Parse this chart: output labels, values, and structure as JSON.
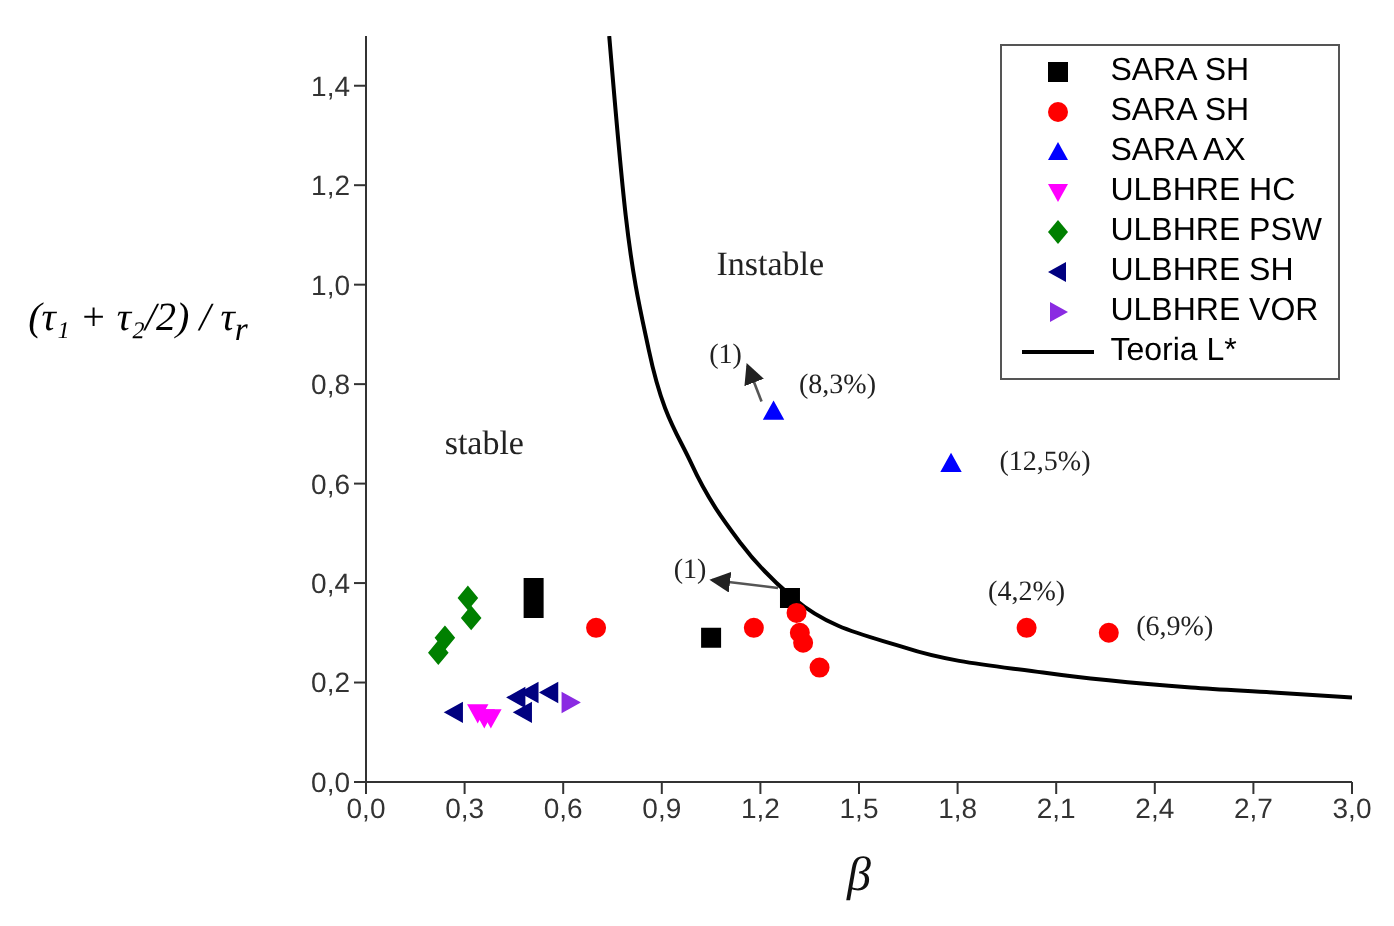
{
  "chart_data": {
    "type": "scatter",
    "xlabel": "β",
    "ylabel": "(τ₁ + τ₂/2) / τ$_{r}$",
    "xlim": [
      0,
      3
    ],
    "ylim": [
      0,
      1.5
    ],
    "xticks": [
      {
        "value": 0,
        "label": "0,0"
      },
      {
        "value": 0.3,
        "label": "0,3"
      },
      {
        "value": 0.6,
        "label": "0,6"
      },
      {
        "value": 0.9,
        "label": "0,9"
      },
      {
        "value": 1.2,
        "label": "1,2"
      },
      {
        "value": 1.5,
        "label": "1,5"
      },
      {
        "value": 1.8,
        "label": "1,8"
      },
      {
        "value": 2.1,
        "label": "2,1"
      },
      {
        "value": 2.4,
        "label": "2,4"
      },
      {
        "value": 2.7,
        "label": "2,7"
      },
      {
        "value": 3,
        "label": "3,0"
      }
    ],
    "yticks": [
      {
        "value": 0,
        "label": "0,0"
      },
      {
        "value": 0.2,
        "label": "0,2"
      },
      {
        "value": 0.4,
        "label": "0,4"
      },
      {
        "value": 0.6,
        "label": "0,6"
      },
      {
        "value": 0.8,
        "label": "0,8"
      },
      {
        "value": 1.0,
        "label": "1,0"
      },
      {
        "value": 1.2,
        "label": "1,2"
      },
      {
        "value": 1.4,
        "label": "1,4"
      }
    ],
    "grid": false,
    "legend": "top right",
    "series": [
      {
        "name": "SARA SH",
        "color": "#000000",
        "marker": "square",
        "x": [
          0.51,
          0.51,
          1.05,
          1.29
        ],
        "values": [
          0.39,
          0.35,
          0.29,
          0.37
        ]
      },
      {
        "name": "SARA SH",
        "color": "#ff0000",
        "marker": "circle",
        "x": [
          0.7,
          1.18,
          1.31,
          1.32,
          1.33,
          1.38,
          2.01,
          2.26
        ],
        "values": [
          0.31,
          0.31,
          0.34,
          0.3,
          0.28,
          0.23,
          0.31,
          0.3
        ]
      },
      {
        "name": "SARA AX",
        "color": "#0000ff",
        "marker": "triangle",
        "x": [
          1.24,
          1.78
        ],
        "values": [
          0.745,
          0.64
        ]
      },
      {
        "name": "ULBHRE HC",
        "color": "#ff00ff",
        "marker": "triangle-down",
        "x": [
          0.34,
          0.36,
          0.38
        ],
        "values": [
          0.14,
          0.13,
          0.13
        ]
      },
      {
        "name": "ULBHRE PSW",
        "color": "#008000",
        "marker": "diamond",
        "x": [
          0.31,
          0.32,
          0.24,
          0.22
        ],
        "values": [
          0.37,
          0.33,
          0.29,
          0.26
        ]
      },
      {
        "name": "ULBHRE SH",
        "color": "#000080",
        "marker": "triangle-left",
        "x": [
          0.27,
          0.46,
          0.48,
          0.5,
          0.56
        ],
        "values": [
          0.14,
          0.17,
          0.14,
          0.18,
          0.18
        ]
      },
      {
        "name": "ULBHRE VOR",
        "color": "#8a2be2",
        "marker": "triangle-right",
        "x": [
          0.62
        ],
        "values": [
          0.16
        ]
      },
      {
        "name": "Teoria L*",
        "type": "line",
        "color": "#000000",
        "marker": "none",
        "line_style": "solid",
        "x": [
          0.74,
          0.79,
          0.86,
          0.99,
          1.14,
          1.3,
          1.64,
          2.06,
          2.51,
          2.76,
          3.0
        ],
        "values": [
          1.5,
          1.14,
          0.87,
          0.64,
          0.48,
          0.37,
          0.27,
          0.22,
          0.19,
          0.18,
          0.17
        ]
      }
    ],
    "annotations": [
      "Instable",
      "stable",
      {
        "text": "(1)",
        "x": 1.24,
        "y": 0.745
      },
      {
        "text": "(8,3%)",
        "x": 1.24,
        "y": 0.745
      },
      {
        "text": "(12,5%)",
        "x": 1.78,
        "y": 0.64
      },
      {
        "text": "(1)",
        "x": 1.29,
        "y": 0.37
      },
      {
        "text": "(4,2%)",
        "x": 2.01,
        "y": 0.31
      },
      {
        "text": "(6,9%)",
        "x": 2.26,
        "y": 0.3
      }
    ]
  }
}
